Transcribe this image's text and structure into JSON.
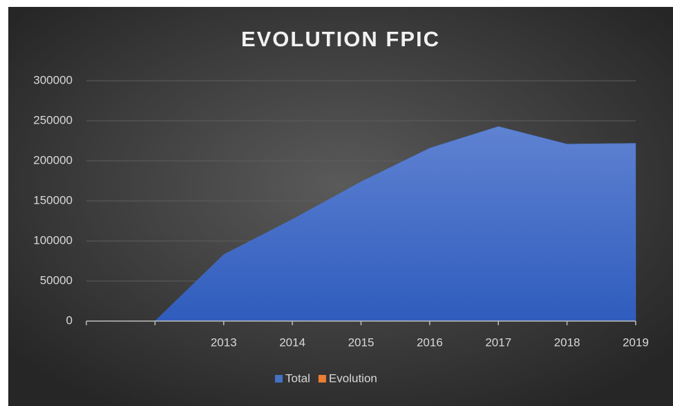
{
  "chart_data": {
    "type": "area",
    "title": "EVOLUTION FPIC",
    "categories": [
      null,
      null,
      "2013",
      "2014",
      "2015",
      "2016",
      "2017",
      "2018",
      "2019"
    ],
    "series": [
      {
        "name": "Total",
        "color": "#4472c4",
        "values": [
          0,
          0,
          83000,
          127000,
          174000,
          216000,
          243000,
          221000,
          222000
        ]
      },
      {
        "name": "Evolution",
        "color": "#ed7d31",
        "values": [
          null,
          null,
          null,
          null,
          null,
          null,
          null,
          null,
          null
        ]
      }
    ],
    "ylim": [
      0,
      300000
    ],
    "yticks": [
      0,
      50000,
      100000,
      150000,
      200000,
      250000,
      300000
    ],
    "grid": true
  }
}
